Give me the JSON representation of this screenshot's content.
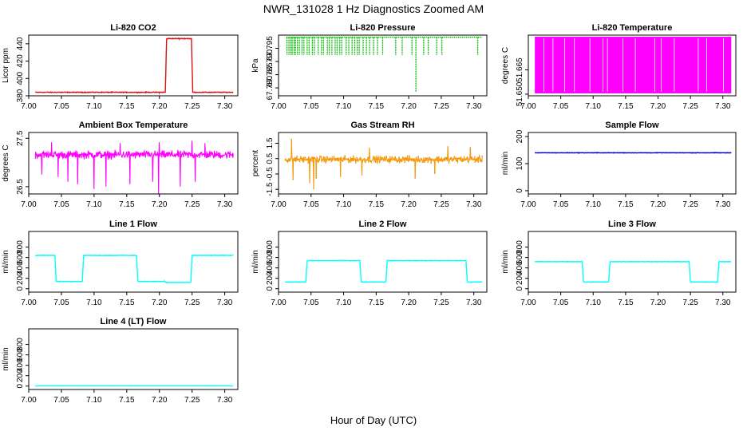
{
  "figure": {
    "title": "NWR_131028  1 Hz Diagnostics Zoomed AM",
    "xlabel": "Hour of Day (UTC)"
  },
  "chart_data": [
    {
      "type": "line",
      "title": "Li-820 CO2",
      "ylabel": "Licor ppm",
      "color": "#dd1111",
      "xlim": [
        7.0,
        7.32
      ],
      "ylim": [
        380,
        450
      ],
      "xticks": [
        "7.00",
        "7.05",
        "7.10",
        "7.15",
        "7.20",
        "7.25",
        "7.30"
      ],
      "yticks": [
        "380",
        "400",
        "420",
        "440"
      ],
      "ytick_values": [
        380,
        400,
        420,
        440
      ],
      "noise": 0.6,
      "style": "line",
      "points": [
        [
          7.01,
          384
        ],
        [
          7.05,
          384
        ],
        [
          7.1,
          384
        ],
        [
          7.15,
          384
        ],
        [
          7.2,
          384
        ],
        [
          7.209,
          384
        ],
        [
          7.211,
          446
        ],
        [
          7.23,
          446
        ],
        [
          7.249,
          446
        ],
        [
          7.251,
          384
        ],
        [
          7.313,
          384
        ]
      ]
    },
    {
      "type": "line",
      "title": "Li-820 Pressure",
      "ylabel": "kPa",
      "color": "#00bb00",
      "xlim": [
        7.0,
        7.32
      ],
      "ylim": [
        67.777,
        67.8
      ],
      "xticks": [
        "7.00",
        "7.05",
        "7.10",
        "7.15",
        "7.20",
        "7.25",
        "7.30"
      ],
      "yticks": [
        "67.780",
        "67.785",
        "67.790",
        "67.795"
      ],
      "ytick_values": [
        67.78,
        67.785,
        67.79,
        67.795
      ],
      "style": "spikes",
      "base": 67.7992,
      "spike_to": 67.7925,
      "spikes_x": [
        7.013,
        7.016,
        7.019,
        7.021,
        7.024,
        7.026,
        7.029,
        7.032,
        7.036,
        7.039,
        7.044,
        7.047,
        7.052,
        7.055,
        7.061,
        7.066,
        7.069,
        7.075,
        7.078,
        7.082,
        7.087,
        7.09,
        7.094,
        7.097,
        7.104,
        7.108,
        7.113,
        7.117,
        7.121,
        7.124,
        7.13,
        7.135,
        7.14,
        7.146,
        7.152,
        7.16,
        7.18,
        7.19,
        7.205,
        7.223,
        7.23,
        7.243,
        7.251,
        7.306
      ],
      "deep_spikes": [
        [
          7.211,
          67.7785
        ]
      ]
    },
    {
      "type": "line",
      "title": "Li-820 Temperature",
      "ylabel": "degrees C",
      "color": "#ff00ff",
      "xlim": [
        7.0,
        7.32
      ],
      "ylim": [
        51.649,
        51.6865
      ],
      "xticks": [
        "7.00",
        "7.05",
        "7.10",
        "7.15",
        "7.20",
        "7.25",
        "7.30"
      ],
      "yticks": [
        "51.650",
        "51.665"
      ],
      "ytick_values": [
        51.65,
        51.665
      ],
      "style": "band",
      "band_low": 51.6505,
      "band_high": 51.6855,
      "gaps_x": [
        7.024,
        7.038,
        7.056,
        7.071,
        7.095,
        7.115,
        7.122,
        7.146,
        7.165,
        7.195,
        7.205,
        7.225,
        7.262,
        7.275,
        7.301
      ]
    },
    {
      "type": "line",
      "title": "Ambient Box Temperature",
      "ylabel": "degrees C",
      "color": "#ff00ff",
      "xlim": [
        7.0,
        7.32
      ],
      "ylim": [
        26.35,
        27.62
      ],
      "xticks": [
        "7.00",
        "7.05",
        "7.10",
        "7.15",
        "7.20",
        "7.25",
        "7.30"
      ],
      "yticks": [
        "26.5",
        "27.5"
      ],
      "ytick_values": [
        26.5,
        27.5
      ],
      "style": "noise",
      "center": 27.16,
      "spread": 0.1,
      "spikes": [
        [
          7.02,
          26.75
        ],
        [
          7.045,
          26.7
        ],
        [
          7.06,
          26.6
        ],
        [
          7.075,
          26.55
        ],
        [
          7.1,
          26.45
        ],
        [
          7.118,
          26.5
        ],
        [
          7.155,
          26.55
        ],
        [
          7.19,
          26.6
        ],
        [
          7.199,
          26.35
        ],
        [
          7.232,
          26.5
        ],
        [
          7.255,
          26.6
        ],
        [
          7.27,
          26.7
        ],
        [
          7.035,
          27.42
        ],
        [
          7.14,
          27.4
        ],
        [
          7.2,
          27.42
        ],
        [
          7.25,
          27.45
        ],
        [
          7.27,
          27.4
        ]
      ]
    },
    {
      "type": "line",
      "title": "Gas Stream RH",
      "ylabel": "percent",
      "color": "#ff9900",
      "color2": "#7a6000",
      "xlim": [
        7.0,
        7.32
      ],
      "ylim": [
        -1.8,
        2.2
      ],
      "xticks": [
        "7.00",
        "7.05",
        "7.10",
        "7.15",
        "7.20",
        "7.25",
        "7.30"
      ],
      "yticks": [
        "-1.5",
        "-0.5",
        "0.5",
        "1.5"
      ],
      "ytick_values": [
        -1.5,
        -0.5,
        0.5,
        1.5
      ],
      "style": "noise",
      "center": 0.45,
      "spread": 0.28,
      "spikes": [
        [
          7.022,
          -0.9
        ],
        [
          7.048,
          -1.1
        ],
        [
          7.054,
          -1.5
        ],
        [
          7.058,
          -0.8
        ],
        [
          7.095,
          -0.7
        ],
        [
          7.128,
          -0.6
        ],
        [
          7.21,
          -0.8
        ],
        [
          7.24,
          -0.5
        ],
        [
          7.02,
          1.8
        ],
        [
          7.14,
          1.2
        ],
        [
          7.26,
          1.3
        ],
        [
          7.295,
          1.25
        ]
      ]
    },
    {
      "type": "line",
      "title": "Sample Flow",
      "ylabel": "ml/min",
      "color": "#0000cc",
      "xlim": [
        7.0,
        7.32
      ],
      "ylim": [
        -12,
        215
      ],
      "xticks": [
        "7.00",
        "7.05",
        "7.10",
        "7.15",
        "7.20",
        "7.25",
        "7.30"
      ],
      "yticks": [
        "0",
        "100",
        "200"
      ],
      "ytick_values": [
        0,
        100,
        200
      ],
      "style": "line",
      "noise": 1.2,
      "points": [
        [
          7.01,
          140
        ],
        [
          7.313,
          140
        ]
      ]
    },
    {
      "type": "line",
      "title": "Line 1 Flow",
      "ylabel": "ml/min",
      "color": "#00ffff",
      "xlim": [
        7.0,
        7.32
      ],
      "ylim": [
        -65,
        1100
      ],
      "xticks": [
        "7.00",
        "7.05",
        "7.10",
        "7.15",
        "7.20",
        "7.25",
        "7.30"
      ],
      "yticks": [
        "0",
        "200",
        "400",
        "600",
        "800"
      ],
      "ytick_values": [
        0,
        200,
        400,
        600,
        800
      ],
      "style": "line",
      "noise": 8,
      "points": [
        [
          7.01,
          640
        ],
        [
          7.04,
          640
        ],
        [
          7.042,
          140
        ],
        [
          7.082,
          140
        ],
        [
          7.084,
          640
        ],
        [
          7.165,
          640
        ],
        [
          7.167,
          140
        ],
        [
          7.208,
          140
        ],
        [
          7.21,
          120
        ],
        [
          7.248,
          120
        ],
        [
          7.25,
          640
        ],
        [
          7.313,
          640
        ]
      ]
    },
    {
      "type": "line",
      "title": "Line 2 Flow",
      "ylabel": "ml/min",
      "color": "#00ffff",
      "xlim": [
        7.0,
        7.32
      ],
      "ylim": [
        -65,
        1100
      ],
      "xticks": [
        "7.00",
        "7.05",
        "7.10",
        "7.15",
        "7.20",
        "7.25",
        "7.30"
      ],
      "yticks": [
        "0",
        "200",
        "400",
        "600",
        "800"
      ],
      "ytick_values": [
        0,
        200,
        400,
        600,
        800
      ],
      "style": "line",
      "noise": 6,
      "points": [
        [
          7.01,
          130
        ],
        [
          7.042,
          130
        ],
        [
          7.044,
          540
        ],
        [
          7.125,
          540
        ],
        [
          7.127,
          130
        ],
        [
          7.165,
          130
        ],
        [
          7.167,
          540
        ],
        [
          7.288,
          540
        ],
        [
          7.29,
          130
        ],
        [
          7.313,
          130
        ]
      ]
    },
    {
      "type": "line",
      "title": "Line 3 Flow",
      "ylabel": "ml/min",
      "color": "#00ffff",
      "xlim": [
        7.0,
        7.32
      ],
      "ylim": [
        -65,
        1100
      ],
      "xticks": [
        "7.00",
        "7.05",
        "7.10",
        "7.15",
        "7.20",
        "7.25",
        "7.30"
      ],
      "yticks": [
        "0",
        "200",
        "400",
        "600",
        "800"
      ],
      "ytick_values": [
        0,
        200,
        400,
        600,
        800
      ],
      "style": "line",
      "noise": 6,
      "points": [
        [
          7.01,
          520
        ],
        [
          7.083,
          520
        ],
        [
          7.085,
          130
        ],
        [
          7.124,
          130
        ],
        [
          7.126,
          520
        ],
        [
          7.248,
          520
        ],
        [
          7.25,
          130
        ],
        [
          7.292,
          130
        ],
        [
          7.294,
          520
        ],
        [
          7.313,
          520
        ]
      ]
    },
    {
      "type": "line",
      "title": "Line 4 (LT) Flow",
      "ylabel": "ml/min",
      "color": "#00ffff",
      "xlim": [
        7.0,
        7.32
      ],
      "ylim": [
        -65,
        1100
      ],
      "xticks": [
        "7.00",
        "7.05",
        "7.10",
        "7.15",
        "7.20",
        "7.25",
        "7.30"
      ],
      "yticks": [
        "0",
        "200",
        "400",
        "600",
        "800"
      ],
      "ytick_values": [
        0,
        200,
        400,
        600,
        800
      ],
      "style": "line",
      "noise": 1,
      "points": [
        [
          7.01,
          5
        ],
        [
          7.313,
          5
        ]
      ]
    }
  ]
}
